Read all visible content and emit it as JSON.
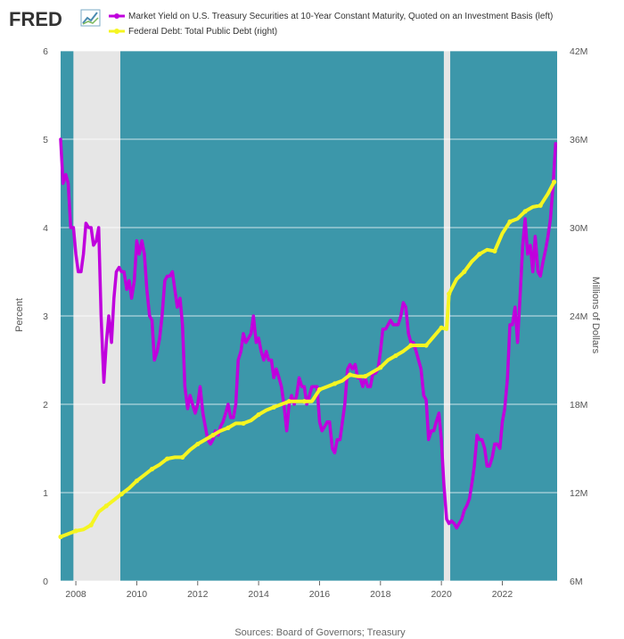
{
  "brand": {
    "logo": "FRED"
  },
  "source": "Sources: Board of Governors; Treasury",
  "chart_data": {
    "type": "line",
    "x_ticks": [
      "2008",
      "2010",
      "2012",
      "2014",
      "2016",
      "2018",
      "2020",
      "2022"
    ],
    "x_range": [
      2007.5,
      2023.8
    ],
    "left_axis": {
      "label": "Percent",
      "range": [
        0,
        6
      ],
      "ticks": [
        "0",
        "1",
        "2",
        "3",
        "4",
        "5",
        "6"
      ]
    },
    "right_axis": {
      "label": "Millions of Dollars",
      "range": [
        6,
        42
      ],
      "ticks": [
        "6M",
        "12M",
        "18M",
        "24M",
        "30M",
        "36M",
        "42M"
      ]
    },
    "recessions": [
      {
        "start": 2007.92,
        "end": 2009.46
      },
      {
        "start": 2020.08,
        "end": 2020.29
      }
    ],
    "grid": true,
    "legend_position": "top",
    "colors": {
      "plot_background": "#3c97aa",
      "recession": "#e6e6e6",
      "grid": "#ffffff"
    },
    "series": [
      {
        "name": "Market Yield on U.S. Treasury Securities at 10-Year Constant Maturity, Quoted on an Investment Basis (left)",
        "axis": "left",
        "color": "#c000dd",
        "points": [
          [
            2007.5,
            5.0
          ],
          [
            2007.58,
            4.5
          ],
          [
            2007.67,
            4.6
          ],
          [
            2007.75,
            4.5
          ],
          [
            2007.83,
            4.0
          ],
          [
            2007.92,
            4.0
          ],
          [
            2008.0,
            3.7
          ],
          [
            2008.08,
            3.5
          ],
          [
            2008.17,
            3.5
          ],
          [
            2008.25,
            3.7
          ],
          [
            2008.33,
            4.05
          ],
          [
            2008.42,
            4.0
          ],
          [
            2008.5,
            4.0
          ],
          [
            2008.58,
            3.8
          ],
          [
            2008.67,
            3.85
          ],
          [
            2008.75,
            4.0
          ],
          [
            2008.83,
            3.0
          ],
          [
            2008.92,
            2.25
          ],
          [
            2009.0,
            2.7
          ],
          [
            2009.08,
            3.0
          ],
          [
            2009.17,
            2.7
          ],
          [
            2009.25,
            3.2
          ],
          [
            2009.33,
            3.5
          ],
          [
            2009.42,
            3.55
          ],
          [
            2009.5,
            3.5
          ],
          [
            2009.58,
            3.5
          ],
          [
            2009.67,
            3.3
          ],
          [
            2009.75,
            3.4
          ],
          [
            2009.83,
            3.2
          ],
          [
            2009.92,
            3.4
          ],
          [
            2010.0,
            3.85
          ],
          [
            2010.08,
            3.7
          ],
          [
            2010.17,
            3.85
          ],
          [
            2010.25,
            3.7
          ],
          [
            2010.33,
            3.3
          ],
          [
            2010.42,
            3.0
          ],
          [
            2010.5,
            2.95
          ],
          [
            2010.58,
            2.5
          ],
          [
            2010.67,
            2.6
          ],
          [
            2010.75,
            2.75
          ],
          [
            2010.83,
            3.0
          ],
          [
            2010.92,
            3.4
          ],
          [
            2011.0,
            3.45
          ],
          [
            2011.08,
            3.45
          ],
          [
            2011.17,
            3.5
          ],
          [
            2011.25,
            3.3
          ],
          [
            2011.33,
            3.1
          ],
          [
            2011.42,
            3.2
          ],
          [
            2011.5,
            2.9
          ],
          [
            2011.58,
            2.2
          ],
          [
            2011.67,
            1.95
          ],
          [
            2011.75,
            2.1
          ],
          [
            2011.83,
            2.0
          ],
          [
            2011.92,
            1.9
          ],
          [
            2012.0,
            2.0
          ],
          [
            2012.08,
            2.2
          ],
          [
            2012.17,
            1.9
          ],
          [
            2012.25,
            1.75
          ],
          [
            2012.33,
            1.6
          ],
          [
            2012.42,
            1.55
          ],
          [
            2012.5,
            1.6
          ],
          [
            2012.58,
            1.7
          ],
          [
            2012.67,
            1.65
          ],
          [
            2012.75,
            1.75
          ],
          [
            2012.83,
            1.8
          ],
          [
            2012.92,
            1.9
          ],
          [
            2013.0,
            2.0
          ],
          [
            2013.08,
            1.85
          ],
          [
            2013.17,
            1.85
          ],
          [
            2013.25,
            2.0
          ],
          [
            2013.33,
            2.5
          ],
          [
            2013.42,
            2.6
          ],
          [
            2013.5,
            2.8
          ],
          [
            2013.58,
            2.7
          ],
          [
            2013.67,
            2.75
          ],
          [
            2013.75,
            2.8
          ],
          [
            2013.83,
            3.0
          ],
          [
            2013.92,
            2.7
          ],
          [
            2014.0,
            2.75
          ],
          [
            2014.08,
            2.6
          ],
          [
            2014.17,
            2.5
          ],
          [
            2014.25,
            2.6
          ],
          [
            2014.33,
            2.5
          ],
          [
            2014.42,
            2.5
          ],
          [
            2014.5,
            2.3
          ],
          [
            2014.58,
            2.4
          ],
          [
            2014.67,
            2.3
          ],
          [
            2014.75,
            2.2
          ],
          [
            2014.83,
            2.0
          ],
          [
            2014.92,
            1.7
          ],
          [
            2015.0,
            2.0
          ],
          [
            2015.08,
            2.1
          ],
          [
            2015.17,
            2.0
          ],
          [
            2015.25,
            2.1
          ],
          [
            2015.33,
            2.3
          ],
          [
            2015.42,
            2.2
          ],
          [
            2015.5,
            2.2
          ],
          [
            2015.58,
            2.0
          ],
          [
            2015.67,
            2.1
          ],
          [
            2015.75,
            2.2
          ],
          [
            2015.83,
            2.2
          ],
          [
            2015.92,
            2.2
          ],
          [
            2016.0,
            1.8
          ],
          [
            2016.08,
            1.7
          ],
          [
            2016.17,
            1.75
          ],
          [
            2016.25,
            1.8
          ],
          [
            2016.33,
            1.8
          ],
          [
            2016.42,
            1.5
          ],
          [
            2016.5,
            1.45
          ],
          [
            2016.58,
            1.6
          ],
          [
            2016.67,
            1.6
          ],
          [
            2016.75,
            1.8
          ],
          [
            2016.83,
            2.0
          ],
          [
            2016.92,
            2.4
          ],
          [
            2017.0,
            2.45
          ],
          [
            2017.08,
            2.4
          ],
          [
            2017.17,
            2.45
          ],
          [
            2017.25,
            2.3
          ],
          [
            2017.33,
            2.3
          ],
          [
            2017.42,
            2.2
          ],
          [
            2017.5,
            2.3
          ],
          [
            2017.58,
            2.2
          ],
          [
            2017.67,
            2.2
          ],
          [
            2017.75,
            2.35
          ],
          [
            2017.83,
            2.35
          ],
          [
            2017.92,
            2.4
          ],
          [
            2018.0,
            2.6
          ],
          [
            2018.08,
            2.85
          ],
          [
            2018.17,
            2.85
          ],
          [
            2018.25,
            2.9
          ],
          [
            2018.33,
            2.95
          ],
          [
            2018.42,
            2.9
          ],
          [
            2018.5,
            2.9
          ],
          [
            2018.58,
            2.9
          ],
          [
            2018.67,
            3.0
          ],
          [
            2018.75,
            3.15
          ],
          [
            2018.83,
            3.1
          ],
          [
            2018.92,
            2.8
          ],
          [
            2019.0,
            2.7
          ],
          [
            2019.08,
            2.7
          ],
          [
            2019.17,
            2.6
          ],
          [
            2019.25,
            2.5
          ],
          [
            2019.33,
            2.4
          ],
          [
            2019.42,
            2.1
          ],
          [
            2019.5,
            2.05
          ],
          [
            2019.58,
            1.6
          ],
          [
            2019.67,
            1.7
          ],
          [
            2019.75,
            1.7
          ],
          [
            2019.83,
            1.8
          ],
          [
            2019.92,
            1.9
          ],
          [
            2020.0,
            1.6
          ],
          [
            2020.08,
            1.1
          ],
          [
            2020.17,
            0.7
          ],
          [
            2020.25,
            0.65
          ],
          [
            2020.33,
            0.68
          ],
          [
            2020.42,
            0.65
          ],
          [
            2020.5,
            0.6
          ],
          [
            2020.58,
            0.65
          ],
          [
            2020.67,
            0.7
          ],
          [
            2020.75,
            0.8
          ],
          [
            2020.83,
            0.85
          ],
          [
            2020.92,
            0.93
          ],
          [
            2021.0,
            1.1
          ],
          [
            2021.08,
            1.3
          ],
          [
            2021.17,
            1.65
          ],
          [
            2021.25,
            1.6
          ],
          [
            2021.33,
            1.6
          ],
          [
            2021.42,
            1.5
          ],
          [
            2021.5,
            1.3
          ],
          [
            2021.58,
            1.3
          ],
          [
            2021.67,
            1.4
          ],
          [
            2021.75,
            1.55
          ],
          [
            2021.83,
            1.55
          ],
          [
            2021.92,
            1.5
          ],
          [
            2022.0,
            1.8
          ],
          [
            2022.08,
            1.95
          ],
          [
            2022.17,
            2.3
          ],
          [
            2022.25,
            2.9
          ],
          [
            2022.33,
            2.9
          ],
          [
            2022.42,
            3.1
          ],
          [
            2022.5,
            2.7
          ],
          [
            2022.58,
            3.2
          ],
          [
            2022.67,
            3.8
          ],
          [
            2022.75,
            4.1
          ],
          [
            2022.83,
            3.7
          ],
          [
            2022.92,
            3.8
          ],
          [
            2023.0,
            3.5
          ],
          [
            2023.08,
            3.9
          ],
          [
            2023.17,
            3.5
          ],
          [
            2023.25,
            3.45
          ],
          [
            2023.33,
            3.6
          ],
          [
            2023.42,
            3.75
          ],
          [
            2023.5,
            3.9
          ],
          [
            2023.58,
            4.1
          ],
          [
            2023.67,
            4.5
          ],
          [
            2023.75,
            4.95
          ]
        ]
      },
      {
        "name": "Federal Debt: Total Public Debt (right)",
        "axis": "right",
        "color": "#f5f521",
        "points": [
          [
            2007.5,
            9.0
          ],
          [
            2007.75,
            9.2
          ],
          [
            2008.0,
            9.4
          ],
          [
            2008.25,
            9.5
          ],
          [
            2008.5,
            9.8
          ],
          [
            2008.75,
            10.7
          ],
          [
            2009.0,
            11.1
          ],
          [
            2009.25,
            11.5
          ],
          [
            2009.5,
            11.9
          ],
          [
            2009.75,
            12.3
          ],
          [
            2010.0,
            12.8
          ],
          [
            2010.25,
            13.2
          ],
          [
            2010.5,
            13.6
          ],
          [
            2010.75,
            13.9
          ],
          [
            2011.0,
            14.3
          ],
          [
            2011.25,
            14.4
          ],
          [
            2011.5,
            14.4
          ],
          [
            2011.75,
            14.9
          ],
          [
            2012.0,
            15.3
          ],
          [
            2012.25,
            15.6
          ],
          [
            2012.5,
            15.9
          ],
          [
            2012.75,
            16.2
          ],
          [
            2013.0,
            16.4
          ],
          [
            2013.25,
            16.7
          ],
          [
            2013.5,
            16.7
          ],
          [
            2013.75,
            16.9
          ],
          [
            2014.0,
            17.3
          ],
          [
            2014.25,
            17.6
          ],
          [
            2014.5,
            17.8
          ],
          [
            2014.75,
            18.0
          ],
          [
            2015.0,
            18.2
          ],
          [
            2015.25,
            18.2
          ],
          [
            2015.5,
            18.2
          ],
          [
            2015.75,
            18.2
          ],
          [
            2016.0,
            19.0
          ],
          [
            2016.25,
            19.2
          ],
          [
            2016.5,
            19.4
          ],
          [
            2016.75,
            19.6
          ],
          [
            2017.0,
            20.0
          ],
          [
            2017.25,
            19.9
          ],
          [
            2017.5,
            19.9
          ],
          [
            2017.75,
            20.2
          ],
          [
            2018.0,
            20.5
          ],
          [
            2018.25,
            21.0
          ],
          [
            2018.5,
            21.3
          ],
          [
            2018.75,
            21.6
          ],
          [
            2019.0,
            22.0
          ],
          [
            2019.25,
            22.0
          ],
          [
            2019.5,
            22.0
          ],
          [
            2019.75,
            22.6
          ],
          [
            2020.0,
            23.2
          ],
          [
            2020.17,
            23.1
          ],
          [
            2020.25,
            25.5
          ],
          [
            2020.5,
            26.5
          ],
          [
            2020.75,
            27.0
          ],
          [
            2021.0,
            27.7
          ],
          [
            2021.25,
            28.2
          ],
          [
            2021.5,
            28.5
          ],
          [
            2021.75,
            28.4
          ],
          [
            2022.0,
            29.6
          ],
          [
            2022.25,
            30.4
          ],
          [
            2022.5,
            30.6
          ],
          [
            2022.75,
            31.1
          ],
          [
            2023.0,
            31.4
          ],
          [
            2023.25,
            31.5
          ],
          [
            2023.5,
            32.3
          ],
          [
            2023.7,
            33.1
          ]
        ]
      }
    ]
  }
}
